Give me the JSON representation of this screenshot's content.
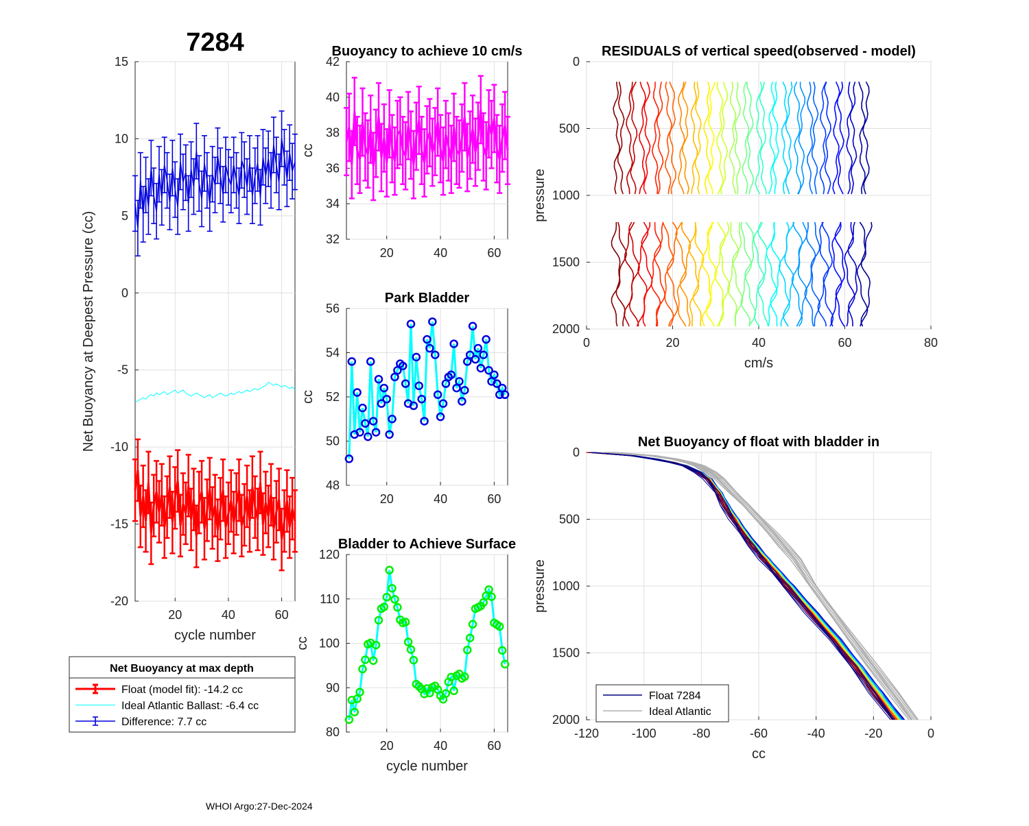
{
  "figure": {
    "float_id": "7284",
    "footer": "WHOI Argo:27-Dec-2024"
  },
  "colors": {
    "float": "#ff0000",
    "ideal": "#00ffff",
    "difference": "#0000dd",
    "buoyancy": "#ff00ff",
    "park_line": "#00ffff",
    "park_marker": "#0000dd",
    "surface_line": "#00ffff",
    "surface_marker": "#00ee00",
    "gray": "#b0b0b0",
    "float_profile": "#000080"
  },
  "chart_data": [
    {
      "id": "net-buoyancy",
      "type": "line",
      "title": "7284",
      "xlabel": "cycle number",
      "ylabel": "Net Buoyancy at Deepest Pressure (cc)",
      "xlim": [
        5,
        65
      ],
      "ylim": [
        -20,
        15
      ],
      "xticks": [
        20,
        40,
        60
      ],
      "yticks": [
        15,
        10,
        5,
        0,
        -5,
        -10,
        -15,
        -20
      ],
      "grid": true,
      "x": [
        5,
        6,
        7,
        8,
        9,
        10,
        11,
        12,
        13,
        14,
        15,
        16,
        17,
        18,
        19,
        20,
        21,
        22,
        23,
        24,
        25,
        26,
        27,
        28,
        29,
        30,
        31,
        32,
        33,
        34,
        35,
        36,
        37,
        38,
        39,
        40,
        41,
        42,
        43,
        44,
        45,
        46,
        47,
        48,
        49,
        50,
        51,
        52,
        53,
        54,
        55,
        56,
        57,
        58,
        59,
        60,
        61,
        62,
        63,
        64,
        65
      ],
      "series": [
        {
          "name": "Float (model fit)",
          "errorbar": true,
          "err": 2.0,
          "values": [
            -12.8,
            -11.5,
            -14.5,
            -13.2,
            -14.8,
            -12.3,
            -15.6,
            -13.8,
            -12.9,
            -14.2,
            -13.1,
            -15.2,
            -13.9,
            -12.6,
            -14.9,
            -13.3,
            -12.2,
            -15.1,
            -13.7,
            -14.3,
            -12.5,
            -14.7,
            -13.4,
            -15.8,
            -13.6,
            -12.9,
            -15.3,
            -14.1,
            -12.7,
            -14.6,
            -13.8,
            -15.4,
            -14.0,
            -12.8,
            -15.2,
            -14.3,
            -13.5,
            -14.9,
            -13.7,
            -12.8,
            -15.1,
            -14.4,
            -13.2,
            -14.8,
            -12.6,
            -13.9,
            -14.7,
            -12.3,
            -15.0,
            -13.6,
            -14.5,
            -13.1,
            -15.3,
            -14.2,
            -13.4,
            -16.0,
            -14.8,
            -13.5,
            -15.2,
            -14.0,
            -14.8
          ]
        },
        {
          "name": "Ideal Atlantic Ballast",
          "errorbar": false,
          "values": [
            -7.1,
            -7.0,
            -6.9,
            -6.8,
            -6.9,
            -6.7,
            -6.6,
            -6.7,
            -6.5,
            -6.6,
            -6.5,
            -6.4,
            -6.6,
            -6.5,
            -6.4,
            -6.3,
            -6.5,
            -6.4,
            -6.3,
            -6.5,
            -6.6,
            -6.7,
            -6.6,
            -6.5,
            -6.6,
            -6.7,
            -6.8,
            -6.7,
            -6.6,
            -6.8,
            -6.7,
            -6.6,
            -6.5,
            -6.6,
            -6.7,
            -6.6,
            -6.5,
            -6.6,
            -6.5,
            -6.4,
            -6.5,
            -6.4,
            -6.3,
            -6.4,
            -6.3,
            -6.2,
            -6.3,
            -6.2,
            -6.1,
            -6.0,
            -5.8,
            -5.9,
            -6.0,
            -5.9,
            -6.0,
            -6.1,
            -6.0,
            -6.1,
            -6.2,
            -6.1,
            -6.3
          ]
        },
        {
          "name": "Difference",
          "errorbar": true,
          "err": 1.8,
          "values": [
            5.8,
            4.2,
            7.3,
            5.1,
            7.0,
            5.6,
            8.1,
            6.3,
            5.3,
            7.7,
            6.2,
            8.3,
            7.3,
            5.9,
            8.1,
            6.7,
            5.6,
            8.5,
            7.2,
            7.8,
            5.8,
            8.0,
            6.9,
            9.2,
            7.1,
            6.1,
            8.4,
            7.3,
            5.8,
            7.7,
            7.0,
            8.9,
            7.6,
            6.4,
            8.3,
            7.5,
            7.0,
            8.3,
            7.3,
            6.3,
            8.6,
            8.0,
            6.9,
            8.4,
            6.3,
            7.6,
            8.4,
            6.2,
            8.8,
            7.6,
            8.7,
            7.3,
            9.6,
            8.3,
            7.2,
            10.0,
            8.8,
            7.4,
            9.1,
            7.9,
            8.5
          ]
        }
      ],
      "legend": {
        "title": "Net Buoyancy at max depth",
        "placement": "below",
        "entries": [
          "Float (model fit): -14.2 cc",
          "Ideal Atlantic Ballast:  -6.4 cc",
          "Difference:   7.7 cc"
        ]
      }
    },
    {
      "id": "buoyancy-10",
      "type": "line",
      "title": "Buoyancy to achieve 10 cm/s",
      "xlabel": "",
      "ylabel": "cc",
      "xlim": [
        5,
        65
      ],
      "ylim": [
        32,
        42
      ],
      "xticks": [
        20,
        40,
        60
      ],
      "yticks": [
        42,
        40,
        38,
        36,
        34,
        32
      ],
      "grid": true,
      "errorbar": true,
      "err": 1.9,
      "x": [
        5,
        6,
        7,
        8,
        9,
        10,
        11,
        12,
        13,
        14,
        15,
        16,
        17,
        18,
        19,
        20,
        21,
        22,
        23,
        24,
        25,
        26,
        27,
        28,
        29,
        30,
        31,
        32,
        33,
        34,
        35,
        36,
        37,
        38,
        39,
        40,
        41,
        42,
        43,
        44,
        45,
        46,
        47,
        48,
        49,
        50,
        51,
        52,
        53,
        54,
        55,
        56,
        57,
        58,
        59,
        60,
        61,
        62,
        63,
        64,
        65
      ],
      "values": [
        37.5,
        38.3,
        36.2,
        39.2,
        37.0,
        36.5,
        38.6,
        37.2,
        36.8,
        38.2,
        36.1,
        37.4,
        38.9,
        36.6,
        37.7,
        36.3,
        38.5,
        37.1,
        36.4,
        37.9,
        38.1,
        37.0,
        36.7,
        38.4,
        37.3,
        36.2,
        37.8,
        38.7,
        37.0,
        36.3,
        37.6,
        38.0,
        36.9,
        37.5,
        38.6,
        37.1,
        36.4,
        37.9,
        37.2,
        36.5,
        38.3,
        37.0,
        36.8,
        37.7,
        38.9,
        36.6,
        37.3,
        38.2,
        36.9,
        37.8,
        39.3,
        37.2,
        36.7,
        38.5,
        37.9,
        38.8,
        37.1,
        36.5,
        37.7,
        38.4,
        37.0
      ]
    },
    {
      "id": "park-bladder",
      "type": "line",
      "title": "Park Bladder",
      "xlabel": "",
      "ylabel": "cc",
      "xlim": [
        5,
        65
      ],
      "ylim": [
        48,
        56
      ],
      "xticks": [
        20,
        40,
        60
      ],
      "yticks": [
        56,
        54,
        52,
        50,
        48
      ],
      "grid": true,
      "x": [
        6,
        7,
        8,
        9,
        10,
        11,
        12,
        13,
        14,
        15,
        16,
        17,
        18,
        19,
        20,
        21,
        22,
        23,
        24,
        25,
        26,
        27,
        28,
        29,
        30,
        31,
        32,
        33,
        34,
        35,
        36,
        37,
        38,
        39,
        40,
        41,
        42,
        43,
        44,
        45,
        46,
        47,
        48,
        49,
        50,
        51,
        52,
        53,
        54,
        55,
        56,
        57,
        58,
        59,
        60,
        61,
        62,
        63,
        64
      ],
      "values": [
        49.2,
        53.6,
        50.3,
        52.2,
        50.4,
        51.5,
        50.8,
        50.2,
        53.6,
        50.9,
        50.4,
        52.8,
        51.7,
        52.4,
        51.9,
        50.3,
        51.0,
        52.9,
        53.2,
        53.5,
        53.4,
        52.6,
        51.7,
        55.3,
        51.6,
        53.8,
        52.5,
        51.9,
        50.9,
        54.6,
        54.2,
        55.4,
        53.9,
        52.1,
        51.1,
        51.7,
        52.6,
        52.9,
        53.0,
        54.4,
        52.4,
        52.7,
        51.8,
        52.3,
        53.6,
        53.9,
        55.2,
        53.7,
        54.2,
        53.3,
        53.9,
        54.6,
        53.2,
        52.7,
        53.0,
        52.6,
        52.1,
        52.4,
        52.1
      ]
    },
    {
      "id": "bladder-surface",
      "type": "line",
      "title": "Bladder to Achieve Surface",
      "xlabel": "cycle number",
      "ylabel": "cc",
      "xlim": [
        5,
        65
      ],
      "ylim": [
        80,
        120
      ],
      "xticks": [
        20,
        40,
        60
      ],
      "yticks": [
        120,
        110,
        100,
        90,
        80
      ],
      "grid": true,
      "x": [
        6,
        7,
        8,
        9,
        10,
        11,
        12,
        13,
        14,
        15,
        16,
        17,
        18,
        19,
        20,
        21,
        22,
        23,
        24,
        25,
        26,
        27,
        28,
        29,
        30,
        31,
        32,
        33,
        34,
        35,
        36,
        37,
        38,
        39,
        40,
        41,
        42,
        43,
        44,
        45,
        46,
        47,
        48,
        49,
        50,
        51,
        52,
        53,
        54,
        55,
        56,
        57,
        58,
        59,
        60,
        61,
        62,
        63,
        64
      ],
      "values": [
        82.8,
        87.2,
        84.5,
        87.5,
        89.0,
        94.2,
        96.3,
        99.8,
        100.1,
        96.1,
        99.6,
        105.2,
        107.8,
        108.2,
        110.4,
        116.5,
        112.4,
        109.9,
        108.1,
        105.3,
        104.6,
        104.8,
        100.3,
        98.6,
        96.2,
        90.8,
        90.3,
        89.7,
        88.6,
        89.8,
        88.8,
        90.1,
        90.4,
        89.6,
        88.2,
        87.4,
        88.7,
        91.3,
        92.4,
        89.3,
        92.7,
        93.1,
        92.1,
        92.5,
        98.5,
        101.2,
        104.3,
        107.8,
        108.1,
        108.4,
        109.2,
        110.7,
        112.1,
        110.5,
        104.6,
        104.2,
        103.8,
        98.4,
        95.3
      ]
    },
    {
      "id": "residuals",
      "type": "line",
      "title": "RESIDUALS of vertical speed(observed - model)",
      "xlabel": "cm/s",
      "ylabel": "pressure",
      "xlim": [
        0,
        80
      ],
      "ylim": [
        0,
        2000
      ],
      "y_reversed": true,
      "xticks": [
        0,
        20,
        40,
        60,
        80
      ],
      "yticks": [
        0,
        500,
        1000,
        1500,
        2000
      ],
      "grid": true,
      "note": "one residual profile per cycle offset by cycle number, colored by cycle",
      "cycles_first": 7,
      "cycles_last": 66,
      "pressure_segments": [
        [
          150,
          1000
        ],
        [
          1200,
          2000
        ]
      ]
    },
    {
      "id": "net-buoyancy-profile",
      "type": "line",
      "title": "Net Buoyancy of float with bladder in",
      "xlabel": "cc",
      "ylabel": "pressure",
      "xlim": [
        -120,
        0
      ],
      "ylim": [
        0,
        2000
      ],
      "y_reversed": true,
      "xticks": [
        -120,
        -100,
        -80,
        -60,
        -40,
        -20,
        0
      ],
      "yticks": [
        0,
        500,
        1000,
        1500,
        2000
      ],
      "grid": true,
      "pressure": [
        0,
        25,
        50,
        75,
        100,
        150,
        200,
        300,
        400,
        500,
        600,
        700,
        800,
        900,
        1000,
        1200,
        1400,
        1600,
        1800,
        2000
      ],
      "float_profile": [
        -118,
        -104,
        -96,
        -90,
        -86,
        -81,
        -78,
        -74.5,
        -72,
        -69,
        -66,
        -62.5,
        -58.5,
        -54.5,
        -50.5,
        -42.5,
        -34.5,
        -27,
        -20,
        -13
      ],
      "ideal_profile": [
        -112,
        -97,
        -89,
        -84,
        -80.5,
        -76.5,
        -73.5,
        -69,
        -64,
        -59.5,
        -55,
        -51,
        -47,
        -44,
        -41,
        -34,
        -27,
        -20,
        -13,
        -6
      ],
      "legend": {
        "placement": "bottom-left",
        "entries": [
          "Float 7284",
          "Ideal Atlantic"
        ]
      }
    }
  ]
}
